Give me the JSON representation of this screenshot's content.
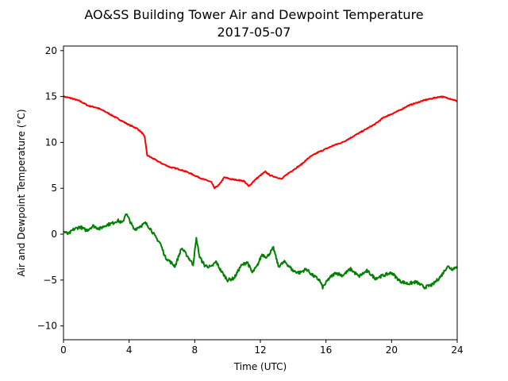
{
  "chart_data": {
    "type": "line",
    "title": "AO&SS Building Tower Air and Dewpoint Temperature",
    "subtitle": "2017-05-07",
    "xlabel": "Time (UTC)",
    "ylabel": "Air and Dewpoint Temperature (°C)",
    "xlim": [
      0,
      24
    ],
    "ylim": [
      -11.5,
      20.5
    ],
    "xticks": [
      0,
      4,
      8,
      12,
      16,
      20,
      24
    ],
    "yticks": [
      -10,
      -5,
      0,
      5,
      10,
      15,
      20
    ],
    "grid": false,
    "series": [
      {
        "color": "#ff0000",
        "x": [
          0,
          0.5,
          1,
          1.5,
          2,
          2.5,
          3,
          3.5,
          4,
          4.5,
          4.8,
          4.95,
          5.1,
          5.5,
          6,
          6.5,
          7,
          7.5,
          8,
          8.5,
          9,
          9.2,
          9.5,
          9.8,
          10.2,
          10.6,
          11,
          11.3,
          11.6,
          12,
          12.3,
          12.6,
          13,
          13.3,
          13.6,
          14,
          14.5,
          15,
          15.5,
          16,
          16.5,
          17,
          17.5,
          18,
          18.5,
          19,
          19.5,
          20,
          20.5,
          21,
          21.5,
          22,
          22.5,
          23,
          23.5,
          24
        ],
        "y": [
          15.0,
          14.8,
          14.5,
          14.0,
          13.8,
          13.4,
          12.9,
          12.4,
          11.9,
          11.5,
          11.0,
          10.6,
          8.6,
          8.2,
          7.7,
          7.3,
          7.1,
          6.8,
          6.4,
          6.0,
          5.7,
          5.0,
          5.4,
          6.2,
          6.0,
          5.9,
          5.8,
          5.2,
          5.8,
          6.4,
          6.8,
          6.4,
          6.2,
          6.0,
          6.5,
          7.0,
          7.6,
          8.4,
          8.9,
          9.3,
          9.7,
          10.0,
          10.5,
          11.0,
          11.5,
          12.0,
          12.7,
          13.1,
          13.5,
          14.0,
          14.3,
          14.6,
          14.8,
          15.0,
          14.8,
          14.5
        ]
      },
      {
        "color": "#008000",
        "x": [
          0,
          0.3,
          0.6,
          1,
          1.4,
          1.8,
          2.2,
          2.6,
          3,
          3.3,
          3.6,
          3.8,
          4,
          4.3,
          4.6,
          5,
          5.3,
          5.6,
          5.9,
          6.2,
          6.5,
          6.8,
          7.2,
          7.6,
          7.9,
          8.1,
          8.3,
          8.6,
          9,
          9.3,
          9.6,
          10,
          10.4,
          10.8,
          11.2,
          11.5,
          11.8,
          12.1,
          12.4,
          12.8,
          13.1,
          13.5,
          14,
          14.4,
          14.8,
          15.2,
          15.6,
          15.8,
          16.2,
          16.6,
          17,
          17.5,
          18,
          18.5,
          19,
          19.5,
          20,
          20.5,
          21,
          21.5,
          22,
          22.5,
          23,
          23.4,
          23.7,
          24
        ],
        "y": [
          0.3,
          0.0,
          0.5,
          0.8,
          0.4,
          0.9,
          0.6,
          1.0,
          1.2,
          1.5,
          1.2,
          2.3,
          1.6,
          0.5,
          0.8,
          1.2,
          0.6,
          -0.3,
          -1.0,
          -2.5,
          -3.0,
          -3.5,
          -1.5,
          -2.5,
          -3.3,
          -0.5,
          -2.5,
          -3.4,
          -3.6,
          -3.0,
          -4.0,
          -5.0,
          -4.8,
          -3.5,
          -3.0,
          -4.2,
          -3.5,
          -2.2,
          -2.5,
          -1.5,
          -3.5,
          -3.0,
          -4.0,
          -4.2,
          -3.8,
          -4.5,
          -5.0,
          -5.8,
          -4.8,
          -4.2,
          -4.5,
          -3.8,
          -4.6,
          -4.0,
          -4.8,
          -4.5,
          -4.2,
          -5.1,
          -5.4,
          -5.2,
          -5.8,
          -5.5,
          -4.6,
          -3.5,
          -3.8,
          -3.5
        ]
      }
    ]
  }
}
